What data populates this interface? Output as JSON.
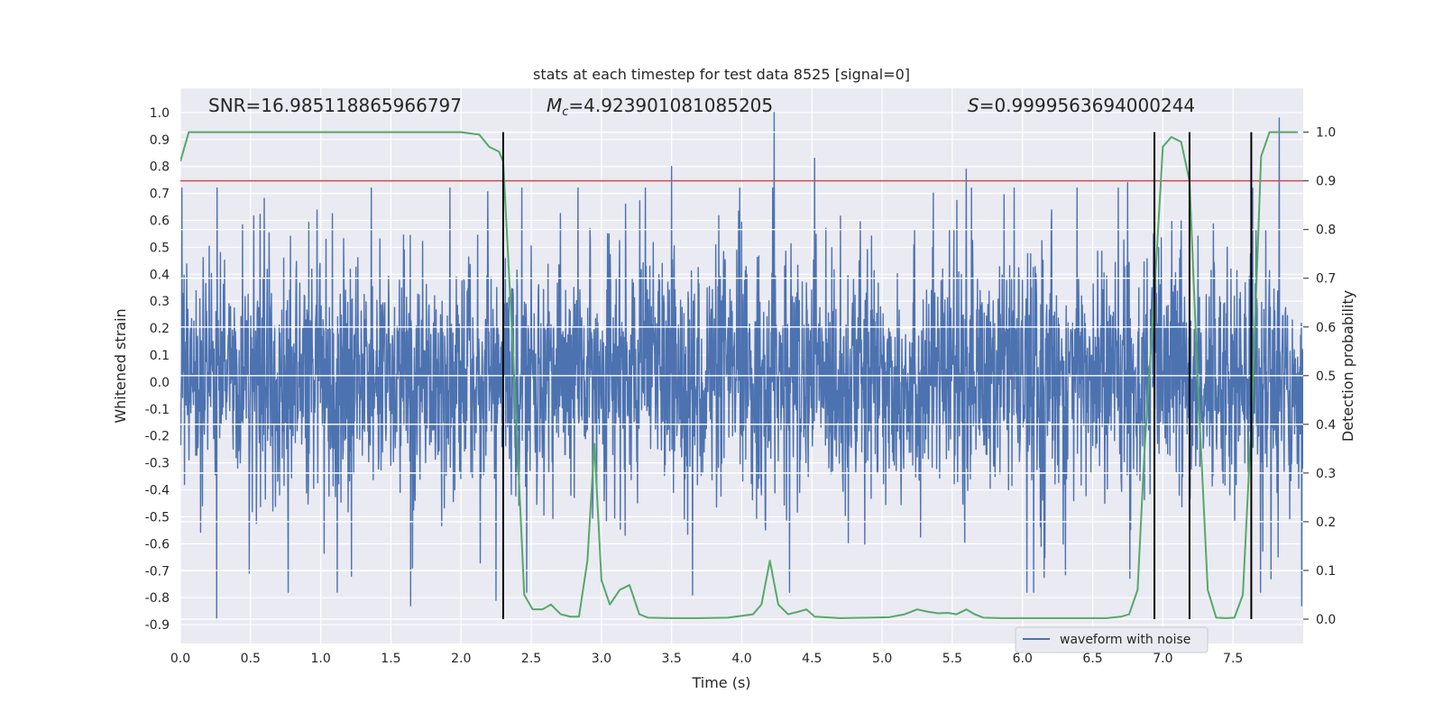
{
  "chart_data": {
    "type": "line",
    "title": "stats at each timestep for test data 8525 [signal=0]",
    "xlabel": "Time (s)",
    "ylabel_left": "Whitened strain",
    "ylabel_right": "Detection probability",
    "xlim": [
      0.0,
      8.0
    ],
    "ylim_left": [
      -0.97,
      1.09
    ],
    "ylim_right": [
      -0.05,
      1.09
    ],
    "x_ticks": [
      "0.0",
      "0.5",
      "1.0",
      "1.5",
      "2.0",
      "2.5",
      "3.0",
      "3.5",
      "4.0",
      "4.5",
      "5.0",
      "5.5",
      "6.0",
      "6.5",
      "7.0",
      "7.5"
    ],
    "y_left_ticks": [
      "-0.9",
      "-0.8",
      "-0.7",
      "-0.6",
      "-0.5",
      "-0.4",
      "-0.3",
      "-0.2",
      "-0.1",
      "0.0",
      "0.1",
      "0.2",
      "0.3",
      "0.4",
      "0.5",
      "0.6",
      "0.7",
      "0.8",
      "0.9",
      "1.0"
    ],
    "y_right_ticks": [
      "0.0",
      "0.1",
      "0.2",
      "0.3",
      "0.4",
      "0.5",
      "0.6",
      "0.7",
      "0.8",
      "0.9",
      "1.0"
    ],
    "grid": true,
    "threshold": 0.9,
    "annotations": {
      "snr": "SNR=16.985118865966797",
      "mc_symbol": "M",
      "mc_sub": "c",
      "mc_value": "=4.923901081085205",
      "s_symbol": "S",
      "s_value": "=0.9999563694000244"
    },
    "legend": {
      "label": "waveform with noise",
      "position": "bottom-right"
    },
    "event_lines_x": [
      2.3,
      6.94,
      7.19,
      7.63
    ],
    "series": [
      {
        "name": "waveform with noise",
        "color": "#4c72b0",
        "axis": "left",
        "noise_seed": 8525,
        "samples": 3000,
        "spikes": [
          {
            "x": 4.23,
            "y": 1.0
          },
          {
            "x": 7.83,
            "y": 0.98
          },
          {
            "x": 4.52,
            "y": 0.83
          },
          {
            "x": 3.5,
            "y": 0.8
          },
          {
            "x": 5.6,
            "y": 0.79
          },
          {
            "x": 0.01,
            "y": 0.72
          },
          {
            "x": 0.26,
            "y": -0.88
          },
          {
            "x": 1.64,
            "y": -0.83
          },
          {
            "x": 3.65,
            "y": -0.79
          },
          {
            "x": 7.99,
            "y": -0.83
          },
          {
            "x": 7.77,
            "y": -0.73
          },
          {
            "x": 2.25,
            "y": -0.81
          },
          {
            "x": 1.22,
            "y": -0.72
          },
          {
            "x": 6.75,
            "y": 0.74
          }
        ]
      },
      {
        "name": "detection probability",
        "color": "#55a868",
        "axis": "right",
        "x": [
          0.0,
          0.06,
          0.2,
          0.5,
          1.0,
          1.5,
          2.0,
          2.13,
          2.2,
          2.27,
          2.3,
          2.37,
          2.45,
          2.51,
          2.58,
          2.64,
          2.71,
          2.78,
          2.84,
          2.9,
          2.95,
          3.0,
          3.06,
          3.13,
          3.2,
          3.27,
          3.33,
          3.5,
          3.7,
          3.9,
          4.08,
          4.14,
          4.2,
          4.26,
          4.33,
          4.4,
          4.46,
          4.52,
          4.7,
          4.9,
          5.05,
          5.16,
          5.25,
          5.33,
          5.4,
          5.47,
          5.53,
          5.6,
          5.66,
          5.72,
          5.85,
          6.0,
          6.2,
          6.4,
          6.6,
          6.7,
          6.76,
          6.82,
          6.87,
          6.94,
          7.0,
          7.06,
          7.13,
          7.19,
          7.25,
          7.32,
          7.38,
          7.45,
          7.51,
          7.57,
          7.63,
          7.7,
          7.76,
          7.83,
          7.9,
          7.96
        ],
        "y": [
          0.94,
          1.0,
          1.0,
          1.0,
          1.0,
          1.0,
          1.0,
          0.995,
          0.97,
          0.96,
          0.94,
          0.55,
          0.05,
          0.02,
          0.02,
          0.03,
          0.01,
          0.005,
          0.005,
          0.12,
          0.36,
          0.08,
          0.03,
          0.06,
          0.07,
          0.01,
          0.003,
          0.002,
          0.002,
          0.003,
          0.01,
          0.03,
          0.12,
          0.03,
          0.01,
          0.015,
          0.02,
          0.005,
          0.002,
          0.003,
          0.004,
          0.01,
          0.02,
          0.015,
          0.012,
          0.013,
          0.01,
          0.02,
          0.01,
          0.003,
          0.002,
          0.002,
          0.002,
          0.002,
          0.002,
          0.005,
          0.01,
          0.06,
          0.35,
          0.67,
          0.97,
          0.99,
          0.98,
          0.9,
          0.48,
          0.06,
          0.003,
          0.002,
          0.003,
          0.05,
          0.4,
          0.95,
          1.0,
          1.0,
          1.0,
          1.0
        ]
      },
      {
        "name": "threshold",
        "color": "#c44e52",
        "axis": "right"
      }
    ]
  }
}
